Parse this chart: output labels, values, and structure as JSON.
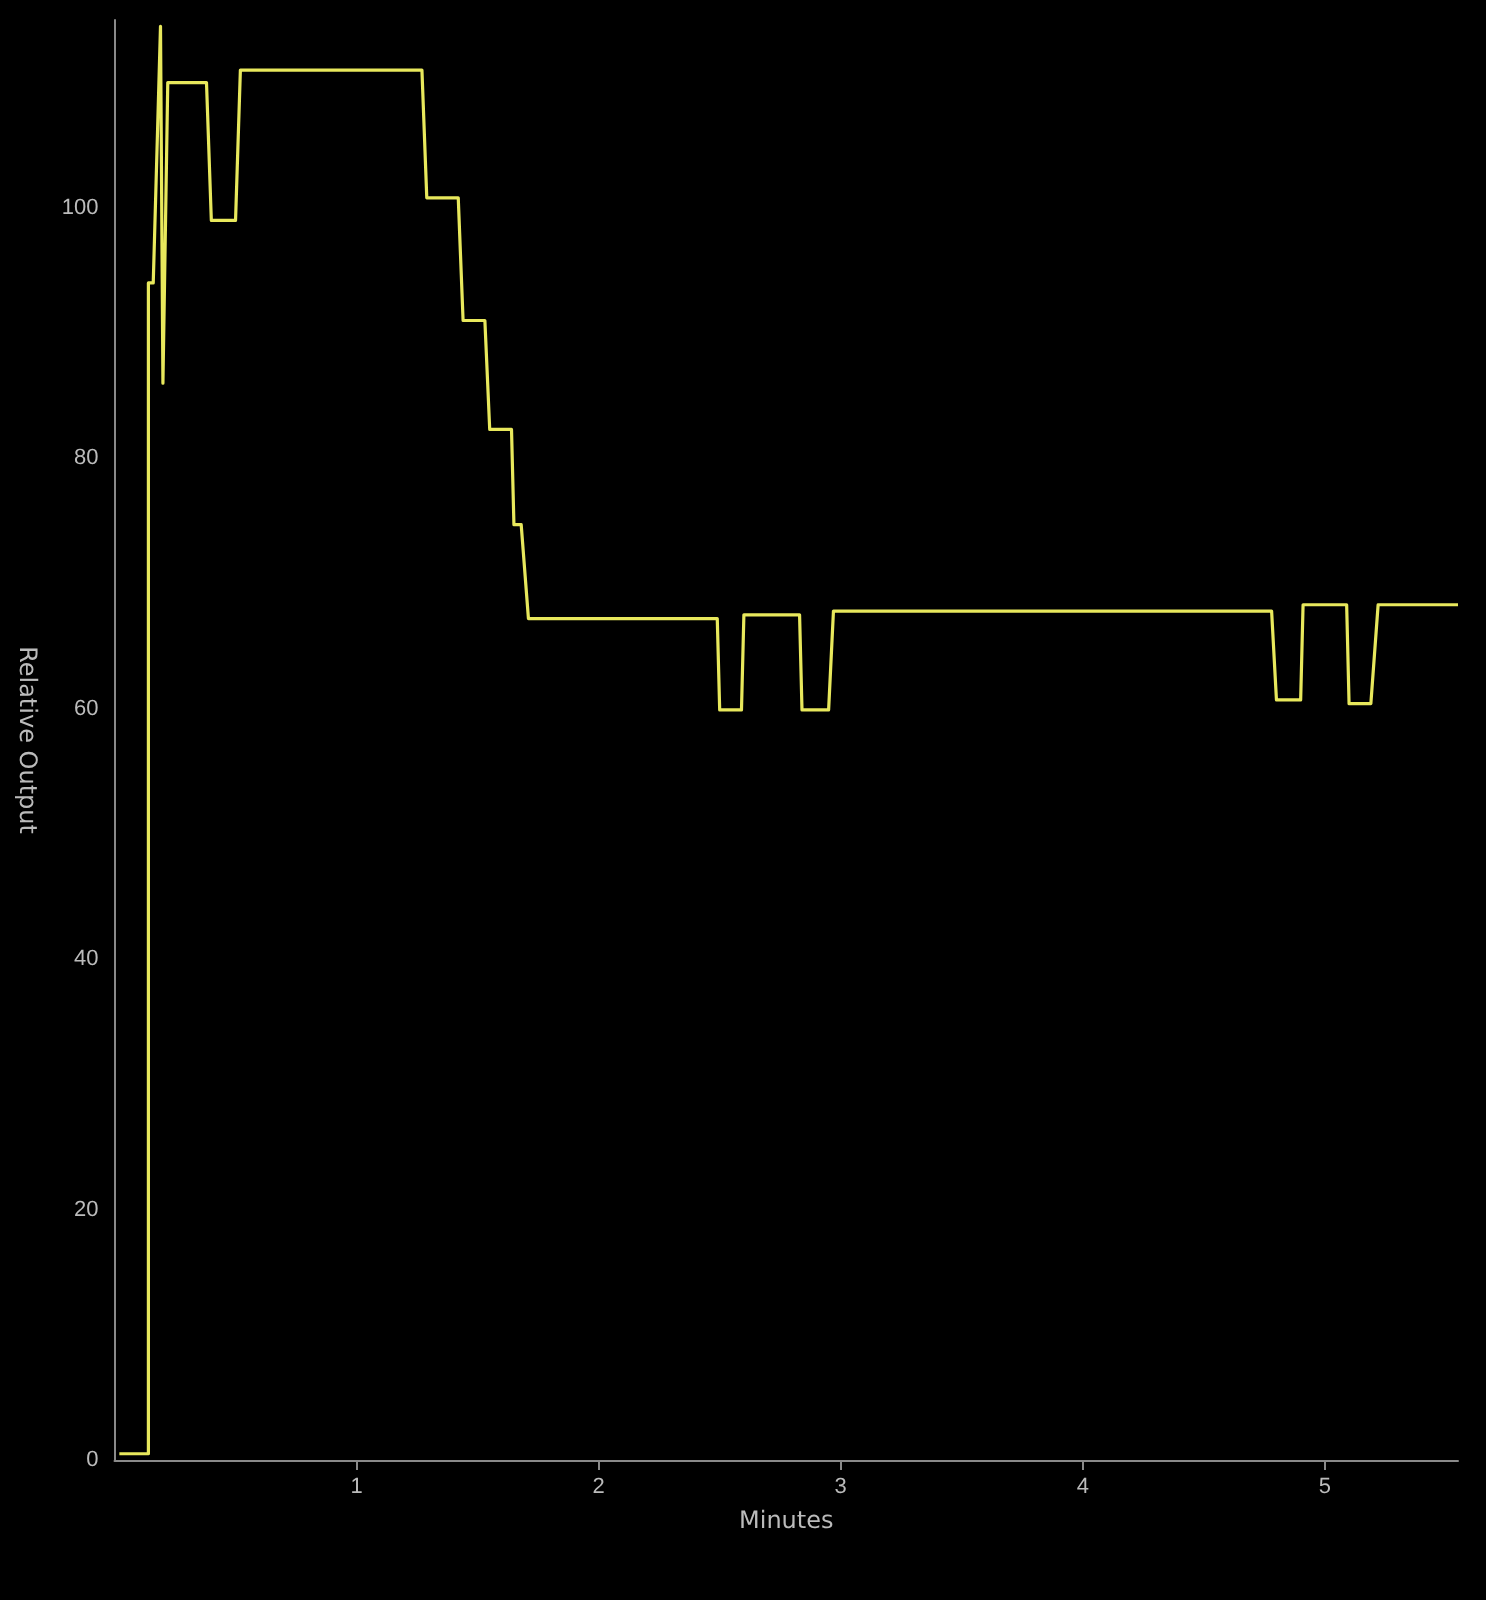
{
  "chart_data": {
    "type": "line",
    "xlabel": "Minutes",
    "ylabel": "Relative Output",
    "x": [
      0.02,
      0.14,
      0.14,
      0.16,
      0.19,
      0.2,
      0.22,
      0.38,
      0.4,
      0.5,
      0.52,
      1.27,
      1.29,
      1.42,
      1.44,
      1.53,
      1.55,
      1.64,
      1.65,
      1.68,
      1.71,
      2.49,
      2.5,
      2.59,
      2.6,
      2.83,
      2.84,
      2.95,
      2.97,
      4.78,
      4.8,
      4.9,
      4.91,
      5.09,
      5.1,
      5.19,
      5.22,
      5.55
    ],
    "series": [
      {
        "color": "#e8e85c",
        "values": [
          0.5,
          0.5,
          94,
          94,
          114.5,
          86,
          110,
          110,
          99,
          99,
          111,
          111,
          100.8,
          100.8,
          91,
          91,
          82.3,
          82.3,
          74.7,
          74.7,
          67.2,
          67.2,
          59.9,
          59.9,
          67.5,
          67.5,
          59.9,
          59.9,
          67.8,
          67.8,
          60.7,
          60.7,
          68.3,
          68.3,
          60.4,
          60.4,
          68.3,
          68.3
        ]
      }
    ],
    "xlim": [
      0,
      5.55
    ],
    "ylim": [
      0,
      115
    ],
    "xticks": [
      1,
      2,
      3,
      4,
      5
    ],
    "yticks": [
      0,
      20,
      40,
      60,
      80,
      100
    ],
    "grid": false,
    "marker": "none",
    "line_style": "solid"
  }
}
